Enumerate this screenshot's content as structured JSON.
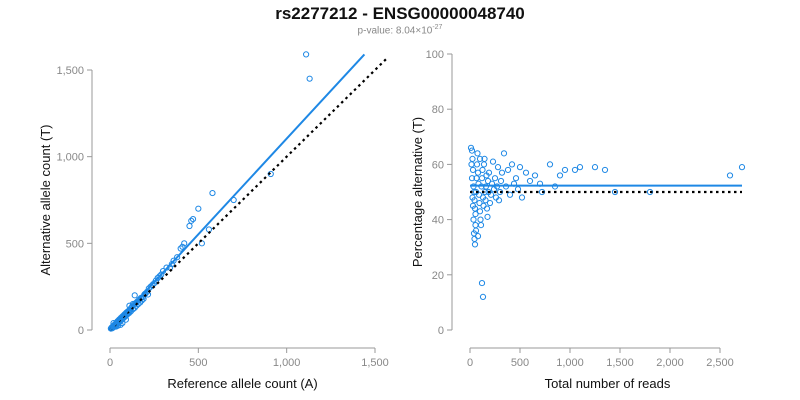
{
  "title": "rs2277212 - ENSG00000048740",
  "subtitle": {
    "prefix": "p-value: 8.04×10",
    "exponent": "-27"
  },
  "colors": {
    "points": "#1e88e5",
    "fit_line": "#1e88e5",
    "reference_line": "#000000"
  },
  "chart_data": [
    {
      "type": "scatter",
      "xlabel": "Reference allele count (A)",
      "ylabel": "Alternative allele count (T)",
      "xlim": [
        0,
        1500
      ],
      "ylim": [
        0,
        1500
      ],
      "x_ticks": [
        0,
        500,
        1000,
        1500
      ],
      "x_tick_labels": [
        "0",
        "500",
        "1,000",
        "1,500"
      ],
      "y_ticks": [
        0,
        500,
        1000,
        1500
      ],
      "y_tick_labels": [
        "0",
        "500",
        "1,000",
        "1,500"
      ],
      "grid": false,
      "fit_line": {
        "x": [
          0,
          1440
        ],
        "y": [
          0,
          1590
        ]
      },
      "reference_line": {
        "x": [
          0,
          1570
        ],
        "y": [
          0,
          1570
        ]
      },
      "points": [
        [
          5,
          8
        ],
        [
          8,
          12
        ],
        [
          10,
          15
        ],
        [
          12,
          10
        ],
        [
          15,
          20
        ],
        [
          18,
          14
        ],
        [
          20,
          25
        ],
        [
          22,
          18
        ],
        [
          25,
          30
        ],
        [
          28,
          22
        ],
        [
          30,
          35
        ],
        [
          32,
          28
        ],
        [
          35,
          40
        ],
        [
          38,
          30
        ],
        [
          40,
          45
        ],
        [
          42,
          50
        ],
        [
          45,
          38
        ],
        [
          48,
          55
        ],
        [
          50,
          42
        ],
        [
          52,
          60
        ],
        [
          55,
          48
        ],
        [
          58,
          65
        ],
        [
          60,
          52
        ],
        [
          62,
          70
        ],
        [
          65,
          58
        ],
        [
          68,
          75
        ],
        [
          70,
          62
        ],
        [
          72,
          80
        ],
        [
          75,
          68
        ],
        [
          78,
          85
        ],
        [
          80,
          72
        ],
        [
          82,
          90
        ],
        [
          85,
          78
        ],
        [
          88,
          95
        ],
        [
          90,
          82
        ],
        [
          92,
          100
        ],
        [
          95,
          88
        ],
        [
          98,
          105
        ],
        [
          100,
          92
        ],
        [
          105,
          110
        ],
        [
          108,
          98
        ],
        [
          110,
          115
        ],
        [
          115,
          105
        ],
        [
          118,
          125
        ],
        [
          120,
          110
        ],
        [
          125,
          135
        ],
        [
          130,
          120
        ],
        [
          135,
          145
        ],
        [
          140,
          128
        ],
        [
          145,
          155
        ],
        [
          150,
          140
        ],
        [
          155,
          165
        ],
        [
          160,
          150
        ],
        [
          165,
          175
        ],
        [
          170,
          158
        ],
        [
          175,
          185
        ],
        [
          180,
          170
        ],
        [
          185,
          190
        ],
        [
          190,
          180
        ],
        [
          195,
          205
        ],
        [
          200,
          210
        ],
        [
          210,
          220
        ],
        [
          215,
          205
        ],
        [
          220,
          240
        ],
        [
          230,
          250
        ],
        [
          240,
          260
        ],
        [
          250,
          270
        ],
        [
          260,
          285
        ],
        [
          270,
          300
        ],
        [
          280,
          310
        ],
        [
          290,
          320
        ],
        [
          300,
          340
        ],
        [
          320,
          360
        ],
        [
          340,
          360
        ],
        [
          350,
          380
        ],
        [
          360,
          400
        ],
        [
          380,
          420
        ],
        [
          400,
          470
        ],
        [
          410,
          480
        ],
        [
          420,
          500
        ],
        [
          450,
          600
        ],
        [
          460,
          630
        ],
        [
          470,
          640
        ],
        [
          500,
          700
        ],
        [
          520,
          500
        ],
        [
          560,
          580
        ],
        [
          580,
          790
        ],
        [
          700,
          750
        ],
        [
          910,
          900
        ],
        [
          1130,
          1450
        ],
        [
          1110,
          1590
        ],
        [
          35,
          20
        ],
        [
          60,
          30
        ],
        [
          90,
          60
        ],
        [
          130,
          150
        ],
        [
          20,
          40
        ],
        [
          45,
          25
        ],
        [
          70,
          40
        ],
        [
          110,
          140
        ],
        [
          140,
          200
        ]
      ]
    },
    {
      "type": "scatter",
      "xlabel": "Total number of reads",
      "ylabel": "Percentage alternative (T)",
      "xlim": [
        0,
        2750
      ],
      "ylim": [
        0,
        100
      ],
      "x_ticks": [
        0,
        500,
        1000,
        1500,
        2000,
        2500
      ],
      "x_tick_labels": [
        "0",
        "500",
        "1,000",
        "1,500",
        "2,000",
        "2,500"
      ],
      "y_ticks": [
        0,
        20,
        40,
        60,
        80,
        100
      ],
      "y_tick_labels": [
        "0",
        "20",
        "40",
        "60",
        "80",
        "100"
      ],
      "grid": false,
      "fit_line": {
        "x": [
          0,
          2720
        ],
        "y": [
          52.3,
          52.3
        ]
      },
      "reference_line": {
        "x": [
          0,
          2720
        ],
        "y": [
          50,
          50
        ]
      },
      "points": [
        [
          10,
          66
        ],
        [
          15,
          60
        ],
        [
          20,
          55
        ],
        [
          25,
          48
        ],
        [
          30,
          45
        ],
        [
          35,
          40
        ],
        [
          40,
          35
        ],
        [
          45,
          33
        ],
        [
          50,
          31
        ],
        [
          55,
          38
        ],
        [
          20,
          65
        ],
        [
          25,
          62
        ],
        [
          30,
          58
        ],
        [
          35,
          52
        ],
        [
          40,
          50
        ],
        [
          45,
          47
        ],
        [
          50,
          44
        ],
        [
          55,
          42
        ],
        [
          60,
          50
        ],
        [
          65,
          55
        ],
        [
          70,
          60
        ],
        [
          75,
          64
        ],
        [
          80,
          57
        ],
        [
          85,
          53
        ],
        [
          90,
          49
        ],
        [
          95,
          46
        ],
        [
          100,
          43
        ],
        [
          105,
          40
        ],
        [
          110,
          38
        ],
        [
          115,
          52
        ],
        [
          120,
          55
        ],
        [
          125,
          58
        ],
        [
          130,
          48
        ],
        [
          135,
          45
        ],
        [
          140,
          60
        ],
        [
          145,
          62
        ],
        [
          150,
          50
        ],
        [
          155,
          47
        ],
        [
          160,
          52
        ],
        [
          165,
          56
        ],
        [
          170,
          44
        ],
        [
          175,
          41
        ],
        [
          180,
          54
        ],
        [
          185,
          50
        ],
        [
          190,
          57
        ],
        [
          200,
          46
        ],
        [
          210,
          49
        ],
        [
          220,
          53
        ],
        [
          230,
          61
        ],
        [
          240,
          51
        ],
        [
          250,
          55
        ],
        [
          260,
          48
        ],
        [
          270,
          52
        ],
        [
          280,
          59
        ],
        [
          290,
          47
        ],
        [
          300,
          50
        ],
        [
          310,
          54
        ],
        [
          320,
          57
        ],
        [
          340,
          64
        ],
        [
          360,
          52
        ],
        [
          380,
          58
        ],
        [
          400,
          49
        ],
        [
          420,
          60
        ],
        [
          440,
          53
        ],
        [
          460,
          55
        ],
        [
          480,
          51
        ],
        [
          500,
          59
        ],
        [
          520,
          48
        ],
        [
          560,
          57
        ],
        [
          600,
          54
        ],
        [
          650,
          56
        ],
        [
          700,
          53
        ],
        [
          720,
          50
        ],
        [
          800,
          60
        ],
        [
          850,
          52
        ],
        [
          900,
          56
        ],
        [
          950,
          58
        ],
        [
          1050,
          58
        ],
        [
          1100,
          59
        ],
        [
          1250,
          59
        ],
        [
          1350,
          58
        ],
        [
          1450,
          50
        ],
        [
          1800,
          50
        ],
        [
          2600,
          56
        ],
        [
          2720,
          59
        ],
        [
          120,
          17
        ],
        [
          130,
          12
        ],
        [
          60,
          36
        ],
        [
          80,
          34
        ],
        [
          100,
          62
        ]
      ]
    }
  ]
}
